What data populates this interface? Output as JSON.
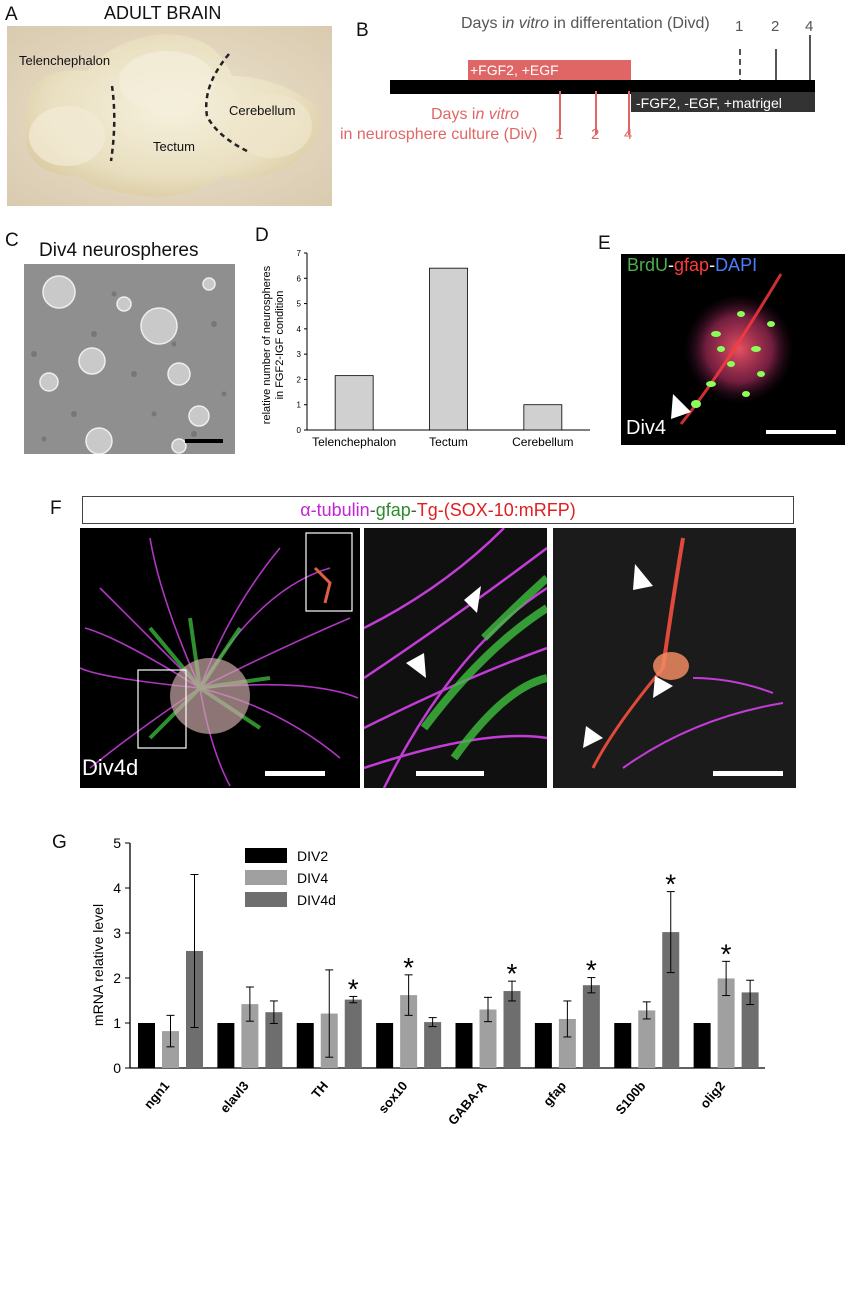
{
  "panels": {
    "A": {
      "letter": "A",
      "title": "ADULT BRAIN",
      "regions": [
        "Telenchephalon",
        "Tectum",
        "Cerebellum"
      ]
    },
    "B": {
      "letter": "B",
      "top_label_pre": "Days i",
      "top_label_italic": "n vitro",
      "top_label_post": " in differentation (Divd)",
      "top_ticks": [
        "1",
        "2",
        "4"
      ],
      "bar_fgf": "+FGF2, +EGF",
      "bar_minus": "-FGF2, -EGF, +matrigel",
      "bottom_label_line1_pre": "Days i",
      "bottom_label_line1_italic": "n vitro",
      "bottom_label_line2": "in neurosphere culture (Div)",
      "bottom_ticks": [
        "1",
        "2",
        "4"
      ]
    },
    "C": {
      "letter": "C",
      "title": "Div4 neurospheres"
    },
    "D": {
      "letter": "D"
    },
    "E": {
      "letter": "E",
      "stain_a": "BrdU",
      "stain_b": "gfap",
      "stain_c": "DAPI",
      "sep": "-",
      "label": "Div4"
    },
    "F": {
      "letter": "F",
      "stain_a": "α-tubulin",
      "stain_b": "gfap",
      "stain_c": "Tg-(SOX-10:mRFP)",
      "sep": "-",
      "label": "Div4d"
    },
    "G": {
      "letter": "G"
    }
  },
  "chart_data": [
    {
      "type": "bar",
      "panel": "D",
      "ylabel_line1": "relative number of neurospheres",
      "ylabel_line2": "in FGF2-IGF condition",
      "categories": [
        "Telenchephalon",
        "Tectum",
        "Cerebellum"
      ],
      "values": [
        2.15,
        6.4,
        1.0
      ],
      "ylim": [
        0,
        7
      ],
      "yticks": [
        "0",
        "1",
        "2",
        "3",
        "4",
        "5",
        "6",
        "7"
      ],
      "bar_color": "#d0d0d0"
    },
    {
      "type": "bar",
      "panel": "G",
      "ylabel": "mRNA relative level",
      "ylim": [
        0,
        5
      ],
      "yticks": [
        "0",
        "1",
        "2",
        "3",
        "4",
        "5"
      ],
      "categories": [
        "ngn1",
        "elavl3",
        "TH",
        "sox10",
        "GABA-A",
        "gfap",
        "S100b",
        "olig2"
      ],
      "series": [
        {
          "name": "DIV2",
          "color": "#000000",
          "values": [
            1,
            1,
            1,
            1,
            1,
            1,
            1,
            1
          ],
          "errors": [
            0,
            0,
            0,
            0,
            0,
            0,
            0,
            0
          ]
        },
        {
          "name": "DIV4",
          "color": "#a0a0a0",
          "values": [
            0.82,
            1.42,
            1.21,
            1.62,
            1.3,
            1.09,
            1.28,
            1.99
          ],
          "errors": [
            0.35,
            0.38,
            0.97,
            0.45,
            0.27,
            0.4,
            0.19,
            0.38
          ]
        },
        {
          "name": "DIV4d",
          "color": "#6e6e6e",
          "values": [
            2.6,
            1.24,
            1.52,
            1.02,
            1.71,
            1.84,
            3.02,
            1.68
          ],
          "errors": [
            1.7,
            0.25,
            0.07,
            0.1,
            0.22,
            0.17,
            0.9,
            0.27
          ]
        }
      ],
      "significance": [
        {
          "category": "TH",
          "series": "DIV4d",
          "mark": "*"
        },
        {
          "category": "sox10",
          "series": "DIV4",
          "mark": "*"
        },
        {
          "category": "GABA-A",
          "series": "DIV4d",
          "mark": "*"
        },
        {
          "category": "gfap",
          "series": "DIV4d",
          "mark": "*"
        },
        {
          "category": "S100b",
          "series": "DIV4d",
          "mark": "*"
        },
        {
          "category": "olig2",
          "series": "DIV4",
          "mark": "*"
        }
      ],
      "legend_position": "top-left"
    }
  ]
}
